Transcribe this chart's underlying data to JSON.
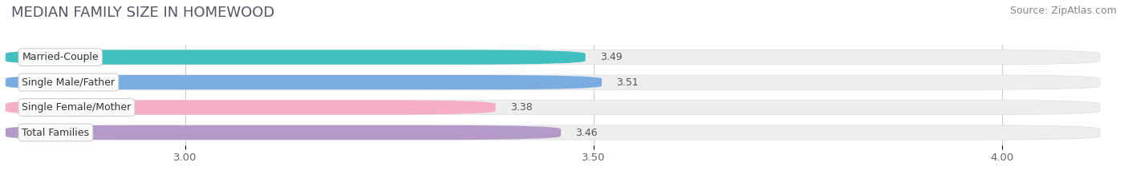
{
  "title": "MEDIAN FAMILY SIZE IN HOMEWOOD",
  "source": "Source: ZipAtlas.com",
  "categories": [
    "Married-Couple",
    "Single Male/Father",
    "Single Female/Mother",
    "Total Families"
  ],
  "values": [
    3.49,
    3.51,
    3.38,
    3.46
  ],
  "bar_colors": [
    "#40bfbf",
    "#7aacdf",
    "#f5adc8",
    "#b39ac8"
  ],
  "xlim_left": 2.78,
  "xlim_right": 4.12,
  "data_min": 2.78,
  "data_max": 4.12,
  "xticks": [
    3.0,
    3.5,
    4.0
  ],
  "xtick_labels": [
    "3.00",
    "3.50",
    "4.00"
  ],
  "background_color": "#ffffff",
  "bar_bg_color": "#eeeeee",
  "title_fontsize": 13,
  "source_fontsize": 9,
  "label_fontsize": 9,
  "value_fontsize": 9
}
